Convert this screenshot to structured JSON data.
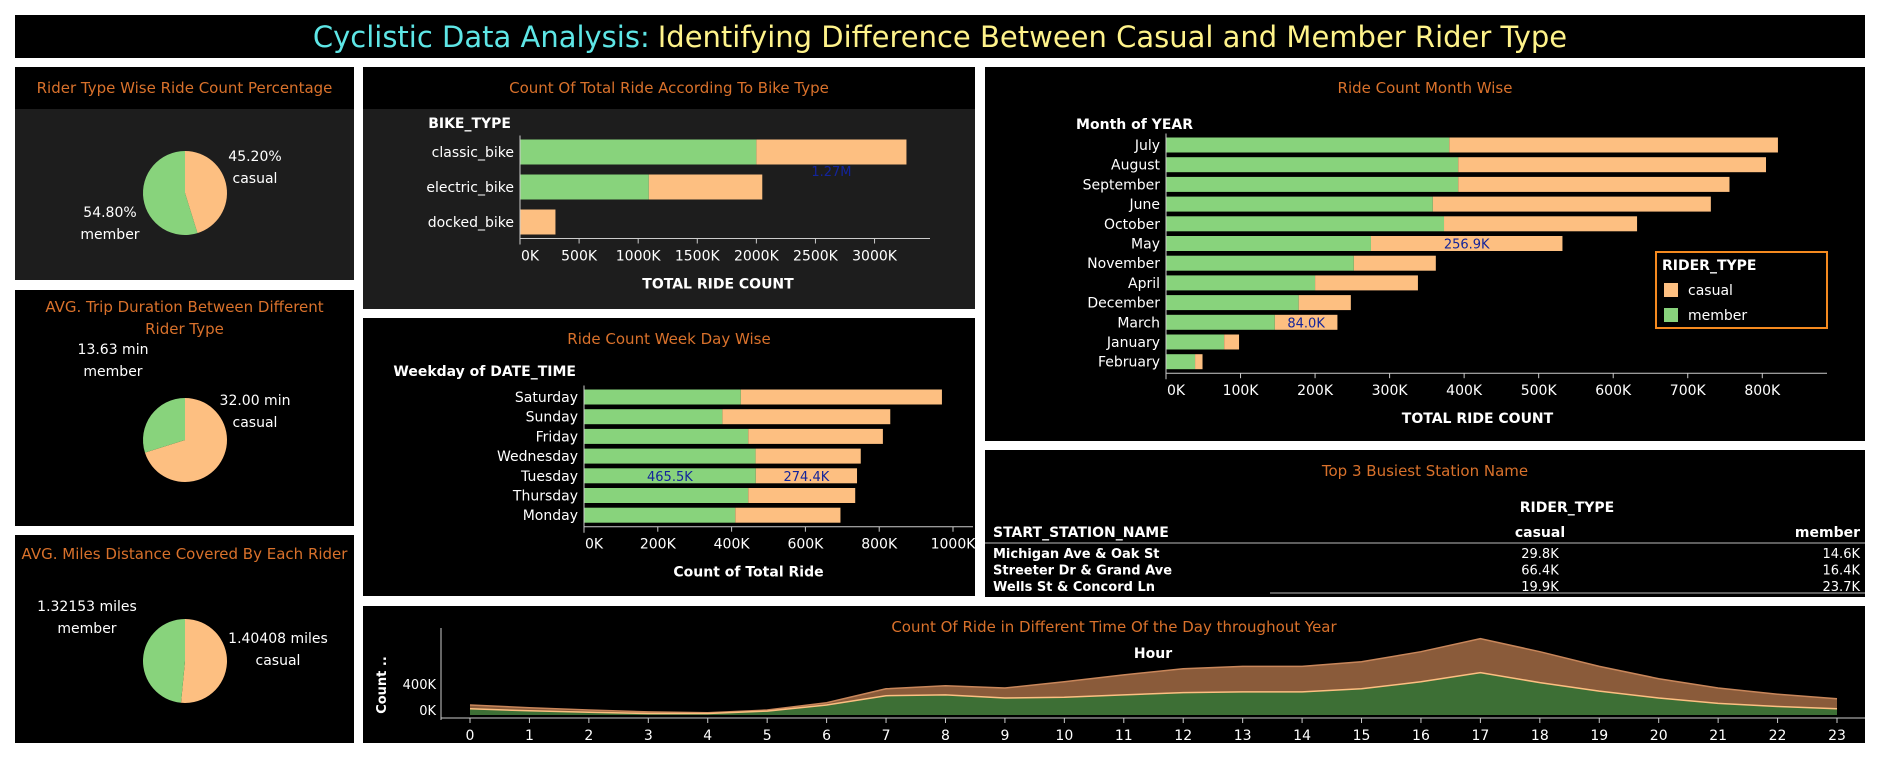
{
  "header": {
    "title_part1": "Cyclistic Data Analysis:",
    "title_part2": "Identifying Difference Between  Casual and Member Rider Type"
  },
  "colors": {
    "casual": "#fdbf81",
    "member": "#88d37c",
    "title_orange": "#d9712b",
    "inline_label": "#13249b",
    "legend_border": "#f58a1f"
  },
  "panels": {
    "rider_pct": {
      "title": "Rider Type Wise Ride Count Percentage"
    },
    "trip_duration": {
      "title": "AVG. Trip Duration Between Different Rider Type"
    },
    "miles": {
      "title": "AVG. Miles Distance Covered By Each Rider"
    },
    "bike_type": {
      "title": "Count Of Total Ride According To Bike Type"
    },
    "weekday": {
      "title": "Ride Count Week Day Wise"
    },
    "month": {
      "title": "Ride Count Month Wise"
    },
    "stations": {
      "title": "Top 3 Busiest Station Name"
    },
    "hour": {
      "title": "Count Of Ride in Different Time Of the Day throughout Year"
    }
  },
  "chart_data": [
    {
      "id": "rider_pct",
      "type": "pie",
      "slices": [
        {
          "name": "casual",
          "value": 45.2,
          "label_value": "45.20%",
          "label_name": "casual"
        },
        {
          "name": "member",
          "value": 54.8,
          "label_value": "54.80%",
          "label_name": "member"
        }
      ]
    },
    {
      "id": "trip_duration",
      "type": "pie",
      "slices": [
        {
          "name": "casual",
          "value": 32.0,
          "label_value": "32.00 min",
          "label_name": "casual"
        },
        {
          "name": "member",
          "value": 13.63,
          "label_value": "13.63 min",
          "label_name": "member"
        }
      ]
    },
    {
      "id": "miles",
      "type": "pie",
      "slices": [
        {
          "name": "casual",
          "value": 1.40408,
          "label_value": "1.40408 miles",
          "label_name": "casual"
        },
        {
          "name": "member",
          "value": 1.32153,
          "label_value": "1.32153 miles",
          "label_name": "member"
        }
      ]
    },
    {
      "id": "bike_type",
      "type": "bar",
      "orientation": "horizontal",
      "stacked": true,
      "row_header": "BIKE_TYPE",
      "xlabel": "TOTAL RIDE COUNT",
      "categories": [
        "classic_bike",
        "electric_bike",
        "docked_bike"
      ],
      "series": [
        {
          "name": "member",
          "values": [
            2000000,
            1090000,
            0
          ]
        },
        {
          "name": "casual",
          "values": [
            1270000,
            960000,
            300000
          ]
        }
      ],
      "xlim": [
        0,
        3300000
      ],
      "ticks": [
        0,
        500000,
        1000000,
        1500000,
        2000000,
        2500000,
        3000000
      ],
      "tick_labels": [
        "0K",
        "500K",
        "1000K",
        "1500K",
        "2000K",
        "2500K",
        "3000K"
      ],
      "annotations": [
        {
          "category": "classic_bike",
          "series": "casual",
          "text": "1.27M"
        }
      ]
    },
    {
      "id": "weekday",
      "type": "bar",
      "orientation": "horizontal",
      "stacked": true,
      "row_header": "Weekday of DATE_TIME",
      "xlabel": "Count of Total Ride",
      "categories": [
        "Saturday",
        "Sunday",
        "Friday",
        "Wednesday",
        "Tuesday",
        "Thursday",
        "Monday"
      ],
      "series": [
        {
          "name": "member",
          "values": [
            425000,
            375000,
            445000,
            465000,
            465500,
            445000,
            410000
          ]
        },
        {
          "name": "casual",
          "values": [
            545000,
            455000,
            365000,
            285000,
            274400,
            290000,
            285000
          ]
        }
      ],
      "xlim": [
        0,
        1000000
      ],
      "ticks": [
        0,
        200000,
        400000,
        600000,
        800000,
        1000000
      ],
      "tick_labels": [
        "0K",
        "200K",
        "400K",
        "600K",
        "800K",
        "1000K"
      ],
      "annotations": [
        {
          "category": "Tuesday",
          "series": "member",
          "text": "465.5K"
        },
        {
          "category": "Tuesday",
          "series": "casual",
          "text": "274.4K"
        }
      ]
    },
    {
      "id": "month",
      "type": "bar",
      "orientation": "horizontal",
      "stacked": true,
      "row_header": "Month of YEAR",
      "xlabel": "TOTAL RIDE COUNT",
      "categories": [
        "July",
        "August",
        "September",
        "June",
        "October",
        "May",
        "November",
        "April",
        "December",
        "March",
        "January",
        "February"
      ],
      "series": [
        {
          "name": "member",
          "values": [
            380000,
            392000,
            392000,
            358000,
            373000,
            275000,
            252000,
            200000,
            178000,
            146000,
            78000,
            39000
          ]
        },
        {
          "name": "casual",
          "values": [
            441000,
            413000,
            364000,
            373000,
            259000,
            256900,
            110000,
            138000,
            70000,
            84000,
            20000,
            10000
          ]
        }
      ],
      "xlim": [
        0,
        860000
      ],
      "ticks": [
        0,
        100000,
        200000,
        300000,
        400000,
        500000,
        600000,
        700000,
        800000
      ],
      "tick_labels": [
        "0K",
        "100K",
        "200K",
        "300K",
        "400K",
        "500K",
        "600K",
        "700K",
        "800K"
      ],
      "annotations": [
        {
          "category": "May",
          "series": "casual",
          "text": "256.9K"
        },
        {
          "category": "March",
          "series": "casual",
          "text": "84.0K"
        }
      ],
      "legend": {
        "title": "RIDER_TYPE",
        "position": "right",
        "items": [
          "casual",
          "member"
        ]
      }
    },
    {
      "id": "stations",
      "type": "table",
      "column_group": "RIDER_TYPE",
      "row_header": "START_STATION_NAME",
      "columns": [
        "casual",
        "member"
      ],
      "rows": [
        {
          "name": "Michigan Ave & Oak St",
          "casual": "29.8K",
          "member": "14.6K"
        },
        {
          "name": "Streeter Dr & Grand Ave",
          "casual": "66.4K",
          "member": "16.4K"
        },
        {
          "name": "Wells St & Concord Ln",
          "casual": "19.9K",
          "member": "23.7K"
        }
      ]
    },
    {
      "id": "hour",
      "type": "area",
      "stacked": true,
      "x_header": "Hour",
      "ylabel": "Count ..",
      "x": [
        0,
        1,
        2,
        3,
        4,
        5,
        6,
        7,
        8,
        9,
        10,
        11,
        12,
        13,
        14,
        15,
        16,
        17,
        18,
        19,
        20,
        21,
        22,
        23
      ],
      "series": [
        {
          "name": "member",
          "values": [
            80000,
            55000,
            35000,
            20000,
            20000,
            50000,
            130000,
            250000,
            260000,
            220000,
            230000,
            260000,
            290000,
            300000,
            300000,
            340000,
            430000,
            550000,
            420000,
            310000,
            220000,
            150000,
            110000,
            80000
          ]
        },
        {
          "name": "casual",
          "values": [
            50000,
            40000,
            30000,
            20000,
            10000,
            15000,
            30000,
            90000,
            120000,
            130000,
            200000,
            260000,
            310000,
            330000,
            330000,
            350000,
            390000,
            440000,
            400000,
            320000,
            250000,
            200000,
            160000,
            130000
          ]
        }
      ],
      "ylim": [
        0,
        1050000
      ],
      "ticks": [
        0,
        400000
      ],
      "tick_labels": [
        "0K",
        "400K"
      ]
    }
  ]
}
